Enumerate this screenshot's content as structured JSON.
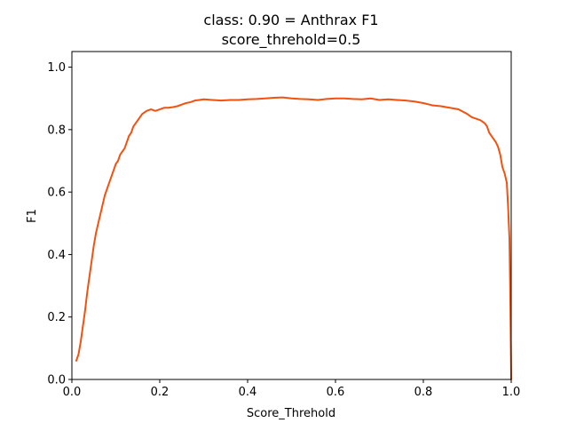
{
  "chart_data": {
    "type": "line",
    "title_line1": "class: 0.90 = Anthrax F1",
    "title_line2": "score_threhold=0.5",
    "xlabel": "Score_Threhold",
    "ylabel": "F1",
    "xlim": [
      0.0,
      1.0
    ],
    "ylim": [
      0.0,
      1.05
    ],
    "x_ticks": [
      "0.0",
      "0.2",
      "0.4",
      "0.6",
      "0.8",
      "1.0"
    ],
    "y_ticks": [
      "0.0",
      "0.2",
      "0.4",
      "0.6",
      "0.8",
      "1.0"
    ],
    "grid": false,
    "series": [
      {
        "color": "#f2520f",
        "x": [
          0.01,
          0.015,
          0.02,
          0.025,
          0.03,
          0.035,
          0.04,
          0.045,
          0.05,
          0.055,
          0.06,
          0.065,
          0.07,
          0.075,
          0.08,
          0.085,
          0.09,
          0.095,
          0.1,
          0.105,
          0.11,
          0.115,
          0.12,
          0.125,
          0.13,
          0.135,
          0.14,
          0.145,
          0.15,
          0.16,
          0.17,
          0.18,
          0.19,
          0.2,
          0.21,
          0.22,
          0.23,
          0.24,
          0.25,
          0.26,
          0.27,
          0.28,
          0.29,
          0.3,
          0.32,
          0.34,
          0.36,
          0.38,
          0.4,
          0.42,
          0.44,
          0.46,
          0.48,
          0.5,
          0.52,
          0.54,
          0.56,
          0.58,
          0.6,
          0.62,
          0.64,
          0.66,
          0.68,
          0.7,
          0.72,
          0.74,
          0.76,
          0.78,
          0.8,
          0.82,
          0.84,
          0.86,
          0.88,
          0.9,
          0.91,
          0.92,
          0.93,
          0.94,
          0.945,
          0.95,
          0.955,
          0.96,
          0.965,
          0.97,
          0.975,
          0.98,
          0.985,
          0.99,
          0.993,
          0.996,
          0.998,
          1.0
        ],
        "y": [
          0.06,
          0.08,
          0.12,
          0.17,
          0.22,
          0.28,
          0.33,
          0.38,
          0.43,
          0.47,
          0.5,
          0.53,
          0.56,
          0.59,
          0.61,
          0.63,
          0.65,
          0.67,
          0.69,
          0.7,
          0.72,
          0.73,
          0.74,
          0.76,
          0.78,
          0.79,
          0.81,
          0.82,
          0.83,
          0.85,
          0.86,
          0.865,
          0.86,
          0.865,
          0.87,
          0.87,
          0.872,
          0.875,
          0.88,
          0.885,
          0.888,
          0.893,
          0.895,
          0.897,
          0.895,
          0.893,
          0.895,
          0.895,
          0.897,
          0.898,
          0.9,
          0.902,
          0.903,
          0.9,
          0.898,
          0.897,
          0.895,
          0.898,
          0.9,
          0.9,
          0.898,
          0.897,
          0.9,
          0.895,
          0.897,
          0.895,
          0.893,
          0.89,
          0.885,
          0.878,
          0.875,
          0.87,
          0.865,
          0.85,
          0.84,
          0.835,
          0.83,
          0.82,
          0.81,
          0.79,
          0.78,
          0.77,
          0.76,
          0.745,
          0.72,
          0.68,
          0.66,
          0.63,
          0.55,
          0.45,
          0.25,
          0.0
        ]
      }
    ]
  }
}
